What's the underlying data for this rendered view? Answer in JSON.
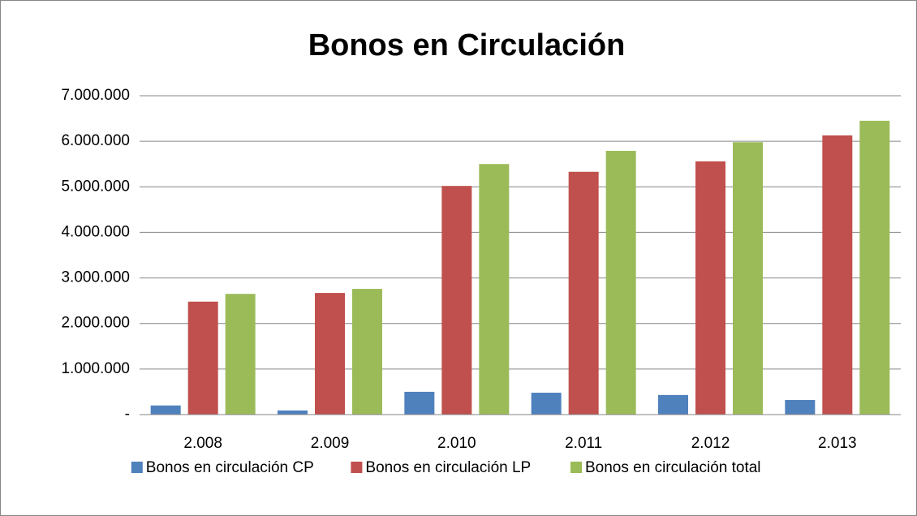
{
  "chart_data": {
    "type": "bar",
    "title": "Bonos en Circulación",
    "categories": [
      "2.008",
      "2.009",
      "2.010",
      "2.011",
      "2.012",
      "2.013"
    ],
    "series": [
      {
        "name": "Bonos en circulación CP",
        "color": "#4f81bd",
        "values": [
          200000,
          90000,
          500000,
          480000,
          430000,
          320000
        ]
      },
      {
        "name": "Bonos en circulación LP",
        "color": "#c0504d",
        "values": [
          2480000,
          2670000,
          5020000,
          5330000,
          5560000,
          6130000
        ]
      },
      {
        "name": "Bonos en circulación total",
        "color": "#9bbb59",
        "values": [
          2650000,
          2760000,
          5500000,
          5790000,
          5980000,
          6450000
        ]
      }
    ],
    "ylim": [
      0,
      7000000
    ],
    "yticks": [
      {
        "value": 0,
        "label": "-"
      },
      {
        "value": 1000000,
        "label": "1.000.000"
      },
      {
        "value": 2000000,
        "label": "2.000.000"
      },
      {
        "value": 3000000,
        "label": "3.000.000"
      },
      {
        "value": 4000000,
        "label": "4.000.000"
      },
      {
        "value": 5000000,
        "label": "5.000.000"
      },
      {
        "value": 6000000,
        "label": "6.000.000"
      },
      {
        "value": 7000000,
        "label": "7.000.000"
      }
    ],
    "grid": true,
    "legend": "bottom"
  }
}
